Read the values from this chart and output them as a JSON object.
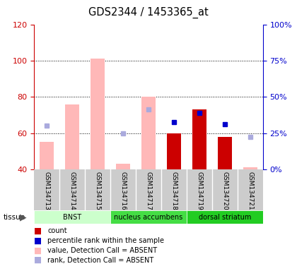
{
  "title": "GDS2344 / 1453365_at",
  "samples": [
    "GSM134713",
    "GSM134714",
    "GSM134715",
    "GSM134716",
    "GSM134717",
    "GSM134718",
    "GSM134719",
    "GSM134720",
    "GSM134721"
  ],
  "absent_value": [
    55,
    76,
    101,
    43,
    80,
    null,
    null,
    null,
    41
  ],
  "absent_rank_left": [
    64,
    null,
    null,
    60,
    73,
    null,
    null,
    null,
    58
  ],
  "present_value": [
    null,
    null,
    null,
    null,
    null,
    60,
    73,
    58,
    null
  ],
  "present_rank_left": [
    null,
    null,
    null,
    null,
    null,
    66,
    71,
    65,
    null
  ],
  "ylim_left": [
    40,
    120
  ],
  "ylim_right": [
    0,
    100
  ],
  "yticks_left": [
    40,
    60,
    80,
    100,
    120
  ],
  "ytick_labels_left": [
    "40",
    "60",
    "80",
    "100",
    "120"
  ],
  "yticks_right_vals": [
    40,
    60,
    80,
    100,
    120
  ],
  "ytick_labels_right": [
    "0%",
    "25%",
    "50%",
    "75%",
    "100%"
  ],
  "bar_bottom": 40,
  "absent_bar_color": "#ffb8b8",
  "present_bar_color": "#cc0000",
  "absent_rank_color": "#aaaadd",
  "present_rank_color": "#0000cc",
  "axis_left_color": "#cc0000",
  "axis_right_color": "#0000cc",
  "tissue_colors": [
    "#ccffcc",
    "#44dd44",
    "#22cc22"
  ],
  "tissue_labels": [
    "BNST",
    "nucleus accumbens",
    "dorsal striatum"
  ],
  "tissue_starts": [
    0,
    3,
    6
  ],
  "tissue_ends": [
    3,
    6,
    9
  ],
  "legend_items": [
    {
      "color": "#cc0000",
      "label": "count"
    },
    {
      "color": "#0000cc",
      "label": "percentile rank within the sample"
    },
    {
      "color": "#ffb8b8",
      "label": "value, Detection Call = ABSENT"
    },
    {
      "color": "#aaaadd",
      "label": "rank, Detection Call = ABSENT"
    }
  ]
}
